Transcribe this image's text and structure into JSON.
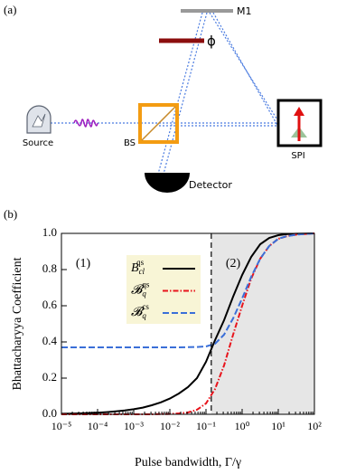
{
  "diagram": {
    "panel_label": "(a)",
    "labels": {
      "mirror": "M1",
      "phase": "ϕ",
      "source": "Source",
      "beam_splitter": "BS",
      "detector": "Detector",
      "spi": "SPI"
    }
  },
  "chart_data": {
    "type": "line",
    "panel_label": "(b)",
    "xlabel": "Pulse bandwidth, Γ/γ",
    "ylabel": "Bhattacharyya Coefficient",
    "log_x": true,
    "xlim": [
      1e-05,
      100
    ],
    "xticks": [
      {
        "value": 1e-05,
        "label": "10⁻⁵"
      },
      {
        "value": 0.0001,
        "label": "10⁻⁴"
      },
      {
        "value": 0.001,
        "label": "10⁻³"
      },
      {
        "value": 0.01,
        "label": "10⁻²"
      },
      {
        "value": 0.1,
        "label": "10⁻¹"
      },
      {
        "value": 1,
        "label": "10⁰"
      },
      {
        "value": 10,
        "label": "10¹"
      },
      {
        "value": 100,
        "label": "10²"
      }
    ],
    "ylim": [
      0,
      1
    ],
    "yticks": [
      {
        "value": 0,
        "label": "0.0"
      },
      {
        "value": 0.2,
        "label": "0.2"
      },
      {
        "value": 0.4,
        "label": "0.4"
      },
      {
        "value": 0.6,
        "label": "0.6"
      },
      {
        "value": 0.8,
        "label": "0.8"
      },
      {
        "value": 1,
        "label": "1.0"
      }
    ],
    "x": [
      1e-05,
      1.78e-05,
      3.16e-05,
      5.62e-05,
      0.0001,
      0.000178,
      0.000316,
      0.000562,
      0.001,
      0.00178,
      0.00316,
      0.00562,
      0.01,
      0.0178,
      0.0316,
      0.0562,
      0.1,
      0.178,
      0.316,
      0.562,
      1,
      1.78,
      3.16,
      5.62,
      10,
      17.8,
      31.6,
      56.2,
      100
    ],
    "series": [
      {
        "name": "B",
        "sub": "cl",
        "sup": "qs",
        "color": "#000000",
        "dash": "solid",
        "values": [
          0.003,
          0.004,
          0.005,
          0.007,
          0.009,
          0.012,
          0.016,
          0.021,
          0.028,
          0.037,
          0.05,
          0.066,
          0.087,
          0.115,
          0.15,
          0.2,
          0.29,
          0.41,
          0.52,
          0.65,
          0.77,
          0.87,
          0.94,
          0.975,
          0.99,
          0.996,
          0.998,
          0.999,
          1.0
        ]
      },
      {
        "name": "𝓑",
        "sub": "q",
        "sup": "qs",
        "color": "#e8141c",
        "dash": "dashdot",
        "values": [
          0,
          0,
          0,
          0,
          0,
          0,
          0,
          0,
          0,
          0,
          0,
          0.001,
          0.002,
          0.005,
          0.01,
          0.025,
          0.06,
          0.14,
          0.27,
          0.44,
          0.6,
          0.75,
          0.86,
          0.93,
          0.97,
          0.985,
          0.993,
          0.997,
          1.0
        ]
      },
      {
        "name": "𝓑",
        "sub": "q",
        "sup": "cs",
        "color": "#3a6fd8",
        "dash": "dashed",
        "values": [
          0.37,
          0.37,
          0.37,
          0.37,
          0.37,
          0.37,
          0.37,
          0.37,
          0.37,
          0.37,
          0.37,
          0.37,
          0.37,
          0.37,
          0.371,
          0.372,
          0.375,
          0.39,
          0.44,
          0.53,
          0.64,
          0.76,
          0.86,
          0.93,
          0.97,
          0.985,
          0.993,
          0.997,
          1.0
        ]
      }
    ],
    "threshold": 0.14,
    "shade_color": "#e6e6e6",
    "annotations": [
      "(1)",
      "(2)"
    ],
    "legend": "upper left",
    "legend_color": "#f8f5d6"
  }
}
